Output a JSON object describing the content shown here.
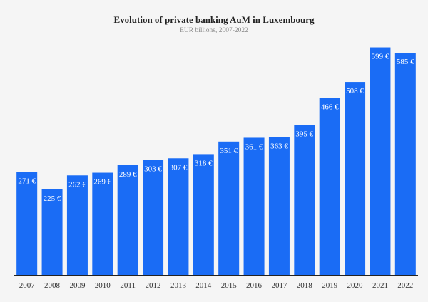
{
  "chart_data": {
    "type": "bar",
    "title": "Evolution of private banking AuM in Luxembourg",
    "subtitle": "EUR billions, 2007-2022",
    "categories": [
      "2007",
      "2008",
      "2009",
      "2010",
      "2011",
      "2012",
      "2013",
      "2014",
      "2015",
      "2016",
      "2017",
      "2018",
      "2019",
      "2020",
      "2021",
      "2022"
    ],
    "values": [
      271,
      225,
      262,
      269,
      289,
      303,
      307,
      318,
      351,
      361,
      363,
      395,
      466,
      508,
      599,
      585
    ],
    "data_labels": [
      "271 €",
      "225 €",
      "262 €",
      "269 €",
      "289 €",
      "303 €",
      "307 €",
      "318 €",
      "351 €",
      "361 €",
      "363 €",
      "395 €",
      "466 €",
      "508 €",
      "599 €",
      "585 €"
    ],
    "xlabel": "",
    "ylabel": "",
    "ylim": [
      0,
      615
    ],
    "grid": false,
    "legend": "none",
    "bar_color": "#1a6cf5",
    "axis_color": "#222222"
  }
}
